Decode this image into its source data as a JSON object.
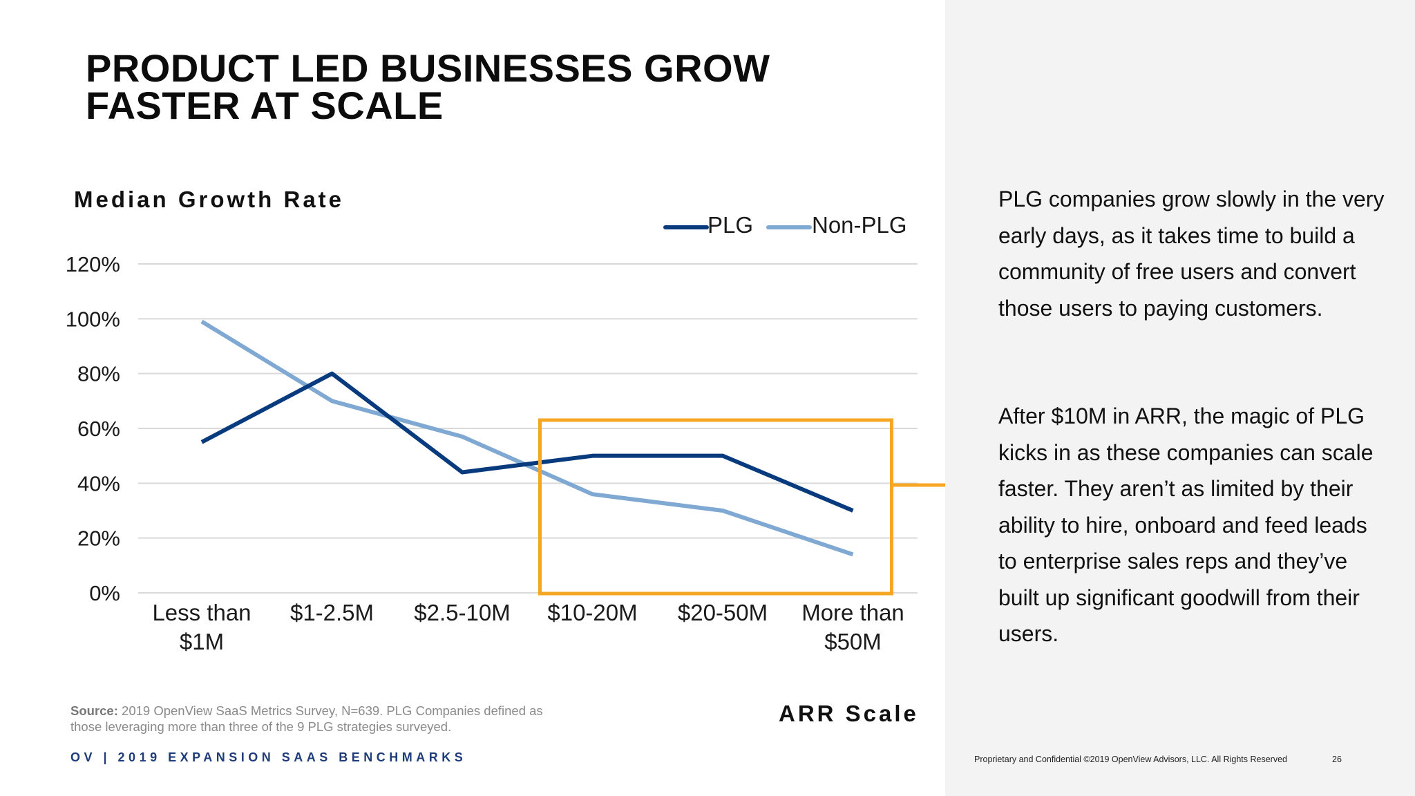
{
  "slide": {
    "title_line1": "PRODUCT LED BUSINESSES GROW",
    "title_line2": "FASTER AT SCALE"
  },
  "colors": {
    "plg": "#073b7e",
    "non_plg": "#7fa9d2",
    "highlight": "#f5a623",
    "grid": "#d9d9d9",
    "right_panel": "#f3f3f3"
  },
  "chart_data": {
    "type": "line",
    "title": "Median Growth Rate",
    "ylabel": "Median Growth Rate",
    "xlabel": "ARR Scale",
    "categories": [
      [
        "Less than",
        "$1M"
      ],
      [
        "$1-2.5M"
      ],
      [
        "$2.5-10M"
      ],
      [
        "$10-20M"
      ],
      [
        "$20-50M"
      ],
      [
        "More than",
        "$50M"
      ]
    ],
    "yticks": [
      "0%",
      "20%",
      "40%",
      "60%",
      "80%",
      "100%",
      "120%"
    ],
    "ylim": [
      0,
      120
    ],
    "grid": true,
    "legend_position": "top-right",
    "series": [
      {
        "name": "PLG",
        "values": [
          55,
          80,
          44,
          50,
          50,
          30
        ]
      },
      {
        "name": "Non-PLG",
        "values": [
          99,
          70,
          57,
          36,
          30,
          14
        ]
      }
    ],
    "highlight": {
      "from_category_index": 3,
      "to_category_index": 5,
      "label": "After $10M in ARR"
    }
  },
  "commentary": {
    "para1": "PLG companies grow slowly in the very early days, as it takes time to build a community of free users and convert those users to paying customers.",
    "para2": "After $10M in ARR, the magic of PLG kicks in as these companies can scale faster. They aren’t as limited by their ability to hire, onboard and feed leads to enterprise sales reps and they’ve built up significant goodwill from their users."
  },
  "source": {
    "label": "Source:",
    "text": "2019 OpenView SaaS Metrics Survey, N=639. PLG Companies defined as those leveraging more than three of the 9 PLG strategies surveyed."
  },
  "footer": {
    "brand": "OV | 2019 EXPANSION SAAS BENCHMARKS",
    "copyright": "Proprietary and Confidential ©2019 OpenView Advisors, LLC. All Rights Reserved",
    "page_number": "26"
  }
}
